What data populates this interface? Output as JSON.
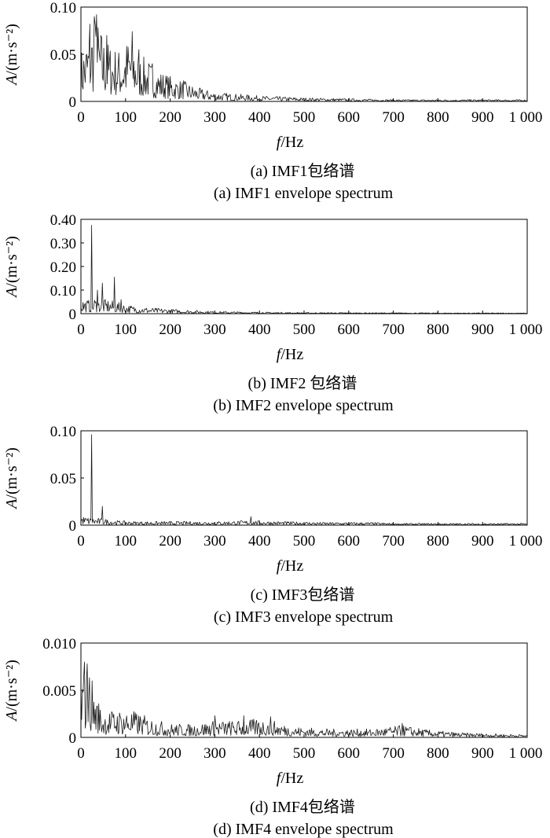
{
  "chart_data": [
    {
      "type": "line",
      "caption_cn": "(a) IMF1包络谱",
      "caption_en": "(a) IMF1 envelope spectrum",
      "xlabel_var": "f",
      "xlabel_unit": "/Hz",
      "ylabel_var": "A",
      "ylabel_unit": "/(m·s⁻²)",
      "xlim": [
        0,
        1000
      ],
      "ylim": [
        0,
        0.1
      ],
      "x_ticks": [
        "0",
        "100",
        "200",
        "300",
        "400",
        "500",
        "600",
        "700",
        "800",
        "900",
        "1 000"
      ],
      "y_ticks": [
        "0",
        "0.05",
        "0.10"
      ],
      "envelope": [
        [
          0,
          0.055
        ],
        [
          10,
          0.065
        ],
        [
          20,
          0.08
        ],
        [
          30,
          0.09
        ],
        [
          40,
          0.085
        ],
        [
          50,
          0.07
        ],
        [
          70,
          0.06
        ],
        [
          90,
          0.055
        ],
        [
          110,
          0.072
        ],
        [
          130,
          0.05
        ],
        [
          150,
          0.045
        ],
        [
          170,
          0.035
        ],
        [
          190,
          0.03
        ],
        [
          210,
          0.025
        ],
        [
          230,
          0.022
        ],
        [
          260,
          0.015
        ],
        [
          300,
          0.01
        ],
        [
          350,
          0.008
        ],
        [
          400,
          0.006
        ],
        [
          500,
          0.004
        ],
        [
          600,
          0.003
        ],
        [
          700,
          0.002
        ],
        [
          800,
          0.002
        ],
        [
          900,
          0.002
        ],
        [
          1000,
          0.002
        ]
      ],
      "peaks": [
        [
          20,
          0.082
        ],
        [
          30,
          0.09
        ],
        [
          35,
          0.092
        ],
        [
          58,
          0.07
        ],
        [
          115,
          0.074
        ],
        [
          130,
          0.055
        ],
        [
          160,
          0.04
        ],
        [
          230,
          0.022
        ]
      ]
    },
    {
      "type": "line",
      "caption_cn": "(b) IMF2 包络谱",
      "caption_en": "(b) IMF2 envelope spectrum",
      "xlabel_var": "f",
      "xlabel_unit": "/Hz",
      "ylabel_var": "A",
      "ylabel_unit": "/(m·s⁻²)",
      "xlim": [
        0,
        1000
      ],
      "ylim": [
        0,
        0.4
      ],
      "x_ticks": [
        "0",
        "100",
        "200",
        "300",
        "400",
        "500",
        "600",
        "700",
        "800",
        "900",
        "1 000"
      ],
      "y_ticks": [
        "0",
        "0.10",
        "0.20",
        "0.30",
        "0.40"
      ],
      "envelope": [
        [
          0,
          0.07
        ],
        [
          10,
          0.06
        ],
        [
          20,
          0.06
        ],
        [
          30,
          0.07
        ],
        [
          40,
          0.06
        ],
        [
          60,
          0.06
        ],
        [
          80,
          0.05
        ],
        [
          100,
          0.04
        ],
        [
          130,
          0.03
        ],
        [
          160,
          0.025
        ],
        [
          200,
          0.02
        ],
        [
          250,
          0.015
        ],
        [
          300,
          0.01
        ],
        [
          400,
          0.007
        ],
        [
          500,
          0.005
        ],
        [
          700,
          0.004
        ],
        [
          1000,
          0.003
        ]
      ],
      "peaks": [
        [
          24,
          0.375
        ],
        [
          37,
          0.1
        ],
        [
          48,
          0.13
        ],
        [
          75,
          0.155
        ],
        [
          90,
          0.06
        ]
      ]
    },
    {
      "type": "line",
      "caption_cn": "(c) IMF3包络谱",
      "caption_en": "(c) IMF3 envelope spectrum",
      "xlabel_var": "f",
      "xlabel_unit": "/Hz",
      "ylabel_var": "A",
      "ylabel_unit": "/(m·s⁻²)",
      "xlim": [
        0,
        1000
      ],
      "ylim": [
        0,
        0.1
      ],
      "x_ticks": [
        "0",
        "100",
        "200",
        "300",
        "400",
        "500",
        "600",
        "700",
        "800",
        "900",
        "1 000"
      ],
      "y_ticks": [
        "0",
        "0.05",
        "0.10"
      ],
      "envelope": [
        [
          0,
          0.01
        ],
        [
          20,
          0.008
        ],
        [
          50,
          0.007
        ],
        [
          80,
          0.005
        ],
        [
          120,
          0.004
        ],
        [
          200,
          0.004
        ],
        [
          300,
          0.004
        ],
        [
          380,
          0.005
        ],
        [
          450,
          0.004
        ],
        [
          550,
          0.003
        ],
        [
          650,
          0.003
        ],
        [
          700,
          0.002
        ],
        [
          800,
          0.002
        ],
        [
          1000,
          0.002
        ]
      ],
      "peaks": [
        [
          24,
          0.096
        ],
        [
          48,
          0.02
        ],
        [
          381,
          0.009
        ]
      ]
    },
    {
      "type": "line",
      "caption_cn": "(d) IMF4包络谱",
      "caption_en": "(d) IMF4 envelope spectrum",
      "xlabel_var": "f",
      "xlabel_unit": "/Hz",
      "ylabel_var": "A",
      "ylabel_unit": "/(m·s⁻²)",
      "xlim": [
        0,
        1000
      ],
      "ylim": [
        0,
        0.01
      ],
      "x_ticks": [
        "0",
        "100",
        "200",
        "300",
        "400",
        "500",
        "600",
        "700",
        "800",
        "900",
        "1 000"
      ],
      "y_ticks": [
        "0",
        "0.005",
        "0.010"
      ],
      "envelope": [
        [
          0,
          0.0065
        ],
        [
          10,
          0.0075
        ],
        [
          20,
          0.007
        ],
        [
          30,
          0.005
        ],
        [
          50,
          0.0028
        ],
        [
          80,
          0.003
        ],
        [
          120,
          0.0028
        ],
        [
          160,
          0.002
        ],
        [
          200,
          0.0015
        ],
        [
          250,
          0.0014
        ],
        [
          300,
          0.0018
        ],
        [
          350,
          0.0018
        ],
        [
          400,
          0.002
        ],
        [
          430,
          0.0018
        ],
        [
          470,
          0.0012
        ],
        [
          550,
          0.0009
        ],
        [
          650,
          0.0009
        ],
        [
          720,
          0.0013
        ],
        [
          780,
          0.0008
        ],
        [
          850,
          0.0005
        ],
        [
          1000,
          0.0003
        ]
      ],
      "peaks": [
        [
          8,
          0.008
        ],
        [
          14,
          0.0078
        ],
        [
          25,
          0.006
        ],
        [
          300,
          0.0023
        ],
        [
          365,
          0.0023
        ],
        [
          425,
          0.0022
        ],
        [
          720,
          0.0015
        ]
      ]
    }
  ]
}
